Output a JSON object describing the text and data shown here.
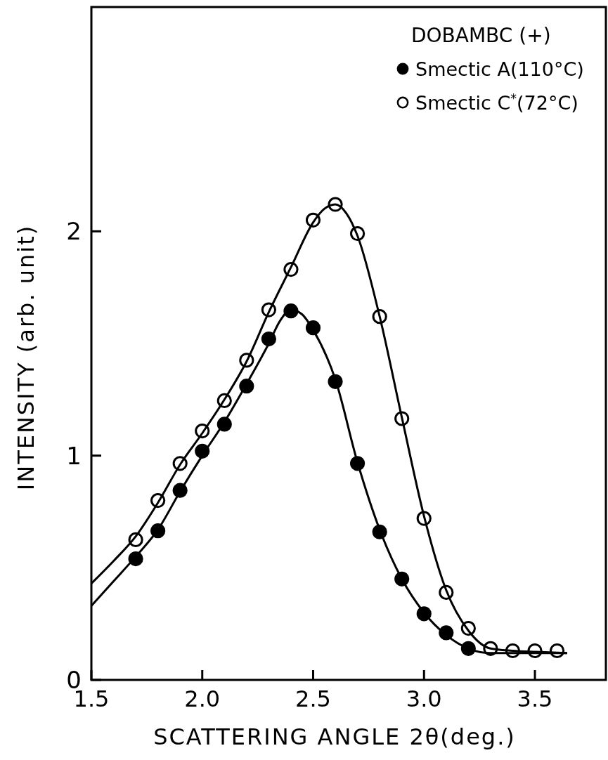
{
  "chart_data": {
    "type": "scatter",
    "xlabel": "SCATTERING ANGLE  2θ(deg.)",
    "ylabel": "INTENSITY (arb. unit)",
    "legend_title": "DOBAMBC (+)",
    "legend": "top right",
    "grid": false,
    "xlim": [
      1.5,
      3.82
    ],
    "ylim": [
      0,
      3
    ],
    "xticks": [
      1.5,
      {
        "value": 2,
        "label": "2.0"
      },
      2.5,
      {
        "value": 3,
        "label": "3.0"
      },
      3.5
    ],
    "yticks": [
      0,
      1,
      2
    ],
    "series": [
      {
        "name": "Smectic A(110°C)",
        "marker": "circle",
        "color": "#000000",
        "x": [
          1.7,
          1.8,
          1.9,
          2.0,
          2.1,
          2.2,
          2.3,
          2.4,
          2.5,
          2.6,
          2.7,
          2.8,
          2.9,
          3.0,
          3.1,
          3.2
        ],
        "values": [
          0.54,
          0.665,
          0.845,
          1.02,
          1.14,
          1.31,
          1.52,
          1.645,
          1.57,
          1.33,
          0.965,
          0.66,
          0.45,
          0.295,
          0.21,
          0.14
        ]
      },
      {
        "name": "Smectic C$^{*}$(72°C)",
        "marker": "circle",
        "color": "#ffffff",
        "x": [
          1.7,
          1.8,
          1.9,
          2.0,
          2.1,
          2.2,
          2.3,
          2.4,
          2.5,
          2.6,
          2.7,
          2.8,
          2.9,
          3.0,
          3.1,
          3.2,
          3.3,
          3.4,
          3.5,
          3.6
        ],
        "values": [
          0.625,
          0.8,
          0.965,
          1.11,
          1.245,
          1.425,
          1.65,
          1.83,
          2.05,
          2.12,
          1.99,
          1.62,
          1.165,
          0.72,
          0.39,
          0.23,
          0.14,
          0.13,
          0.13,
          0.13
        ]
      },
      {
        "type": "line",
        "marker": "none",
        "line_style": "solid",
        "color": "#000000",
        "x": [
          1.5,
          1.6,
          1.7,
          1.8,
          1.9,
          2.0,
          2.1,
          2.2,
          2.3,
          2.35,
          2.4,
          2.45,
          2.5,
          2.6,
          2.7,
          2.8,
          2.9,
          3.0,
          3.1,
          3.2,
          3.3,
          3.4,
          3.5,
          3.645
        ],
        "values": [
          0.33,
          0.44,
          0.55,
          0.67,
          0.84,
          1.0,
          1.15,
          1.32,
          1.5,
          1.6,
          1.65,
          1.63,
          1.56,
          1.34,
          0.97,
          0.67,
          0.45,
          0.3,
          0.2,
          0.14,
          0.12,
          0.12,
          0.12,
          0.12
        ]
      },
      {
        "type": "line",
        "marker": "none",
        "line_style": "solid",
        "color": "#000000",
        "x": [
          1.5,
          1.6,
          1.7,
          1.8,
          1.9,
          2.0,
          2.1,
          2.2,
          2.3,
          2.4,
          2.5,
          2.55,
          2.6,
          2.65,
          2.7,
          2.8,
          2.9,
          3.0,
          3.1,
          3.2,
          3.3,
          3.4,
          3.5,
          3.645
        ],
        "values": [
          0.43,
          0.53,
          0.64,
          0.79,
          0.96,
          1.1,
          1.25,
          1.42,
          1.64,
          1.84,
          2.04,
          2.1,
          2.12,
          2.08,
          1.98,
          1.62,
          1.17,
          0.73,
          0.4,
          0.22,
          0.14,
          0.13,
          0.125,
          0.12
        ]
      }
    ]
  }
}
